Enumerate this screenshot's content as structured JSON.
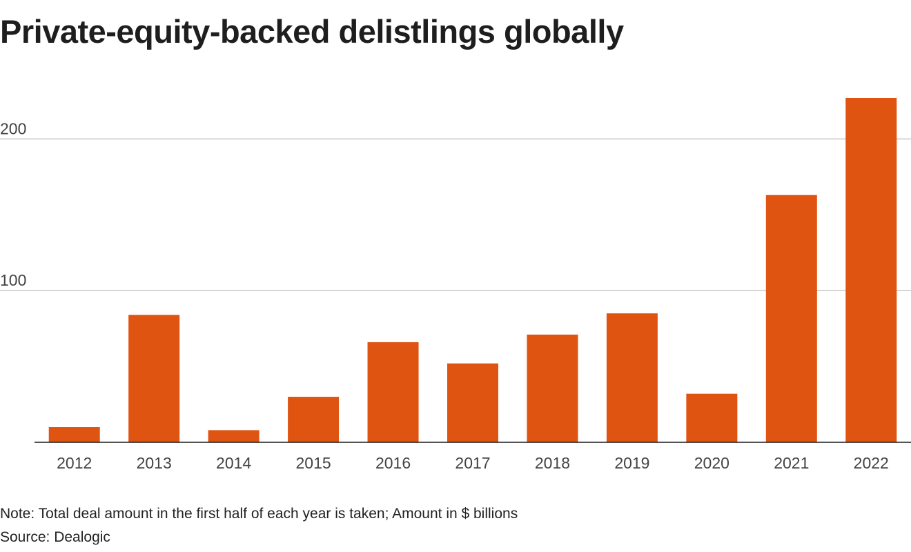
{
  "chart_data": {
    "type": "bar",
    "title": "Private-equity-backed delistlings globally",
    "categories": [
      "2012",
      "2013",
      "2014",
      "2015",
      "2016",
      "2017",
      "2018",
      "2019",
      "2020",
      "2021",
      "2022"
    ],
    "series": [
      {
        "name": "Total deal amount ($ billions)",
        "values": [
          10,
          84,
          8,
          30,
          66,
          52,
          71,
          85,
          32,
          163,
          227
        ]
      }
    ],
    "ylim": [
      0,
      227
    ],
    "yticks": [
      100,
      200
    ],
    "ytick_labels": [
      "100",
      "200"
    ],
    "xlabel": "",
    "ylabel": "",
    "grid": true,
    "bar_color": "#e05412",
    "note": "Note: Total deal amount in the first half of each year is taken; Amount in $ billions",
    "source": "Source: Dealogic"
  }
}
